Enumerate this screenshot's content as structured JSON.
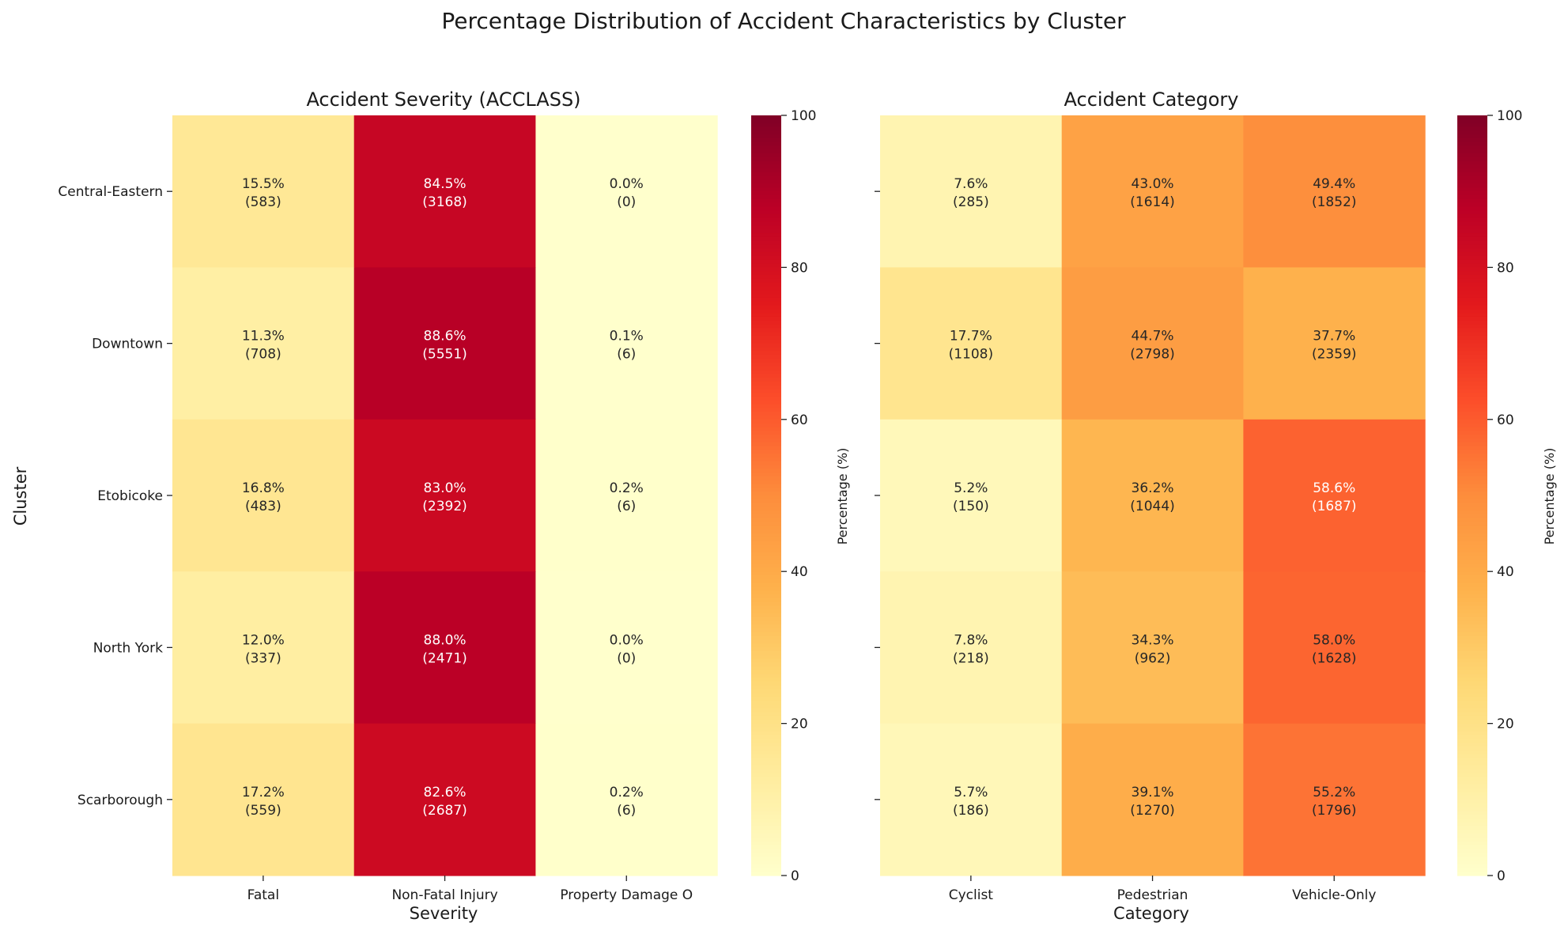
{
  "figure_title": "Percentage Distribution of Accident Characteristics by Cluster",
  "colorbar_label": "Percentage (%)",
  "colormap": [
    "#ffffcc",
    "#ffeda0",
    "#fed976",
    "#feb24c",
    "#fd8d3c",
    "#fc4e2a",
    "#e31a1c",
    "#bd0026",
    "#800026"
  ],
  "chart_data": [
    {
      "type": "heatmap",
      "title": "Accident Severity (ACCLASS)",
      "xlabel": "Severity",
      "ylabel": "Cluster",
      "rows": [
        "Central-Eastern",
        "Downtown",
        "Etobicoke",
        "North York",
        "Scarborough"
      ],
      "columns": [
        "Fatal",
        "Non-Fatal Injury",
        "Property Damage O"
      ],
      "percent": [
        [
          15.5,
          84.5,
          0.0
        ],
        [
          11.3,
          88.6,
          0.1
        ],
        [
          16.8,
          83.0,
          0.2
        ],
        [
          12.0,
          88.0,
          0.0
        ],
        [
          17.2,
          82.6,
          0.2
        ]
      ],
      "counts": [
        [
          583,
          3168,
          0
        ],
        [
          708,
          5551,
          6
        ],
        [
          483,
          2392,
          6
        ],
        [
          337,
          2471,
          0
        ],
        [
          559,
          2687,
          6
        ]
      ],
      "value_range": [
        0,
        100
      ],
      "colorbar_ticks": [
        0,
        20,
        40,
        60,
        80,
        100
      ]
    },
    {
      "type": "heatmap",
      "title": "Accident Category",
      "xlabel": "Category",
      "ylabel": "",
      "rows": [
        "Central-Eastern",
        "Downtown",
        "Etobicoke",
        "North York",
        "Scarborough"
      ],
      "columns": [
        "Cyclist",
        "Pedestrian",
        "Vehicle-Only"
      ],
      "percent": [
        [
          7.6,
          43.0,
          49.4
        ],
        [
          17.7,
          44.7,
          37.7
        ],
        [
          5.2,
          36.2,
          58.6
        ],
        [
          7.8,
          34.3,
          58.0
        ],
        [
          5.7,
          39.1,
          55.2
        ]
      ],
      "counts": [
        [
          285,
          1614,
          1852
        ],
        [
          1108,
          2798,
          2359
        ],
        [
          150,
          1044,
          1687
        ],
        [
          218,
          962,
          1628
        ],
        [
          186,
          1270,
          1796
        ]
      ],
      "value_range": [
        0,
        100
      ],
      "colorbar_ticks": [
        0,
        20,
        40,
        60,
        80,
        100
      ]
    }
  ]
}
